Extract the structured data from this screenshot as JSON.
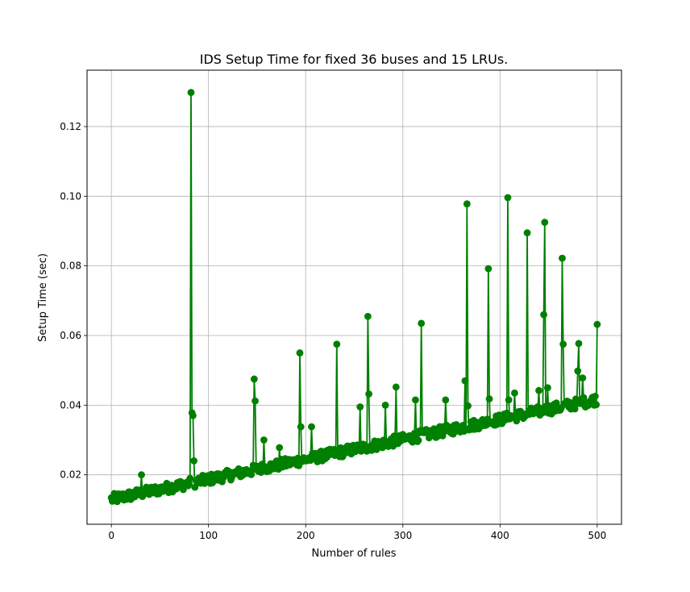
{
  "chart_data": {
    "type": "line",
    "title": "IDS Setup Time for fixed 36 buses and 15 LRUs.",
    "xlabel": "Number of rules",
    "ylabel": "Setup Time (sec)",
    "xlim": [
      -25,
      525
    ],
    "ylim": [
      0.0058,
      0.1362
    ],
    "xticks": [
      0,
      100,
      200,
      300,
      400,
      500
    ],
    "yticks": [
      0.02,
      0.04,
      0.06,
      0.08,
      0.1,
      0.12
    ],
    "xtick_labels": [
      "0",
      "100",
      "200",
      "300",
      "400",
      "500"
    ],
    "ytick_labels": [
      "0.02",
      "0.04",
      "0.06",
      "0.08",
      "0.10",
      "0.12"
    ],
    "grid": true,
    "series": [
      {
        "color": "#008000",
        "marker": "circle",
        "trend": {
          "x_start": 0,
          "y_start": 0.0125,
          "x_end": 500,
          "y_end": 0.0412,
          "x_step": 1
        },
        "spikes": [
          {
            "x": 31,
            "y": 0.02
          },
          {
            "x": 82,
            "y": 0.1298
          },
          {
            "x": 83,
            "y": 0.0378
          },
          {
            "x": 84,
            "y": 0.037
          },
          {
            "x": 85,
            "y": 0.024
          },
          {
            "x": 147,
            "y": 0.0475
          },
          {
            "x": 148,
            "y": 0.0412
          },
          {
            "x": 157,
            "y": 0.03
          },
          {
            "x": 173,
            "y": 0.0278
          },
          {
            "x": 194,
            "y": 0.055
          },
          {
            "x": 195,
            "y": 0.0338
          },
          {
            "x": 206,
            "y": 0.0338
          },
          {
            "x": 232,
            "y": 0.0575
          },
          {
            "x": 256,
            "y": 0.0395
          },
          {
            "x": 264,
            "y": 0.0655
          },
          {
            "x": 265,
            "y": 0.0432
          },
          {
            "x": 282,
            "y": 0.04
          },
          {
            "x": 293,
            "y": 0.0452
          },
          {
            "x": 313,
            "y": 0.0415
          },
          {
            "x": 319,
            "y": 0.0635
          },
          {
            "x": 344,
            "y": 0.0415
          },
          {
            "x": 364,
            "y": 0.047
          },
          {
            "x": 366,
            "y": 0.0978
          },
          {
            "x": 367,
            "y": 0.0398
          },
          {
            "x": 388,
            "y": 0.0792
          },
          {
            "x": 389,
            "y": 0.0418
          },
          {
            "x": 408,
            "y": 0.0996
          },
          {
            "x": 409,
            "y": 0.0415
          },
          {
            "x": 415,
            "y": 0.0435
          },
          {
            "x": 428,
            "y": 0.0895
          },
          {
            "x": 440,
            "y": 0.0442
          },
          {
            "x": 445,
            "y": 0.066
          },
          {
            "x": 446,
            "y": 0.0925
          },
          {
            "x": 449,
            "y": 0.045
          },
          {
            "x": 464,
            "y": 0.0822
          },
          {
            "x": 465,
            "y": 0.0575
          },
          {
            "x": 480,
            "y": 0.0498
          },
          {
            "x": 481,
            "y": 0.0577
          },
          {
            "x": 485,
            "y": 0.0478
          },
          {
            "x": 500,
            "y": 0.0632
          }
        ]
      }
    ]
  }
}
